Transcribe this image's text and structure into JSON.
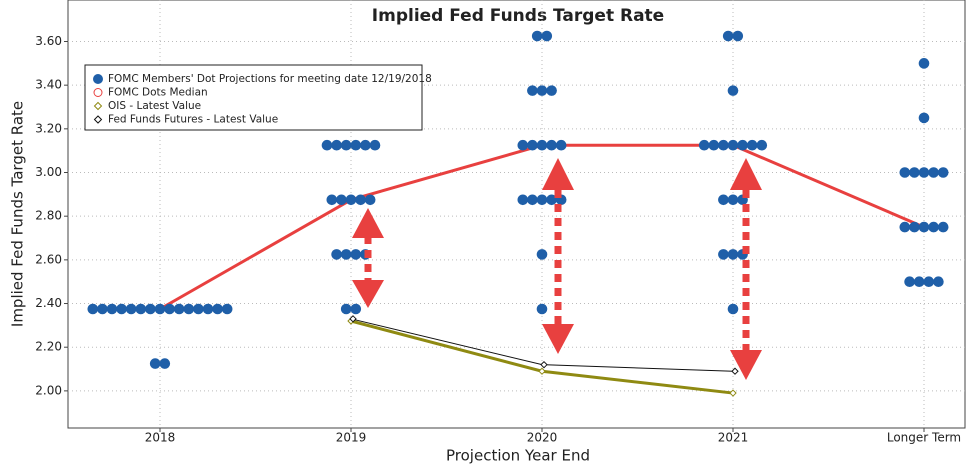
{
  "chart_data": {
    "type": "dot",
    "title": "Implied Fed Funds Target Rate",
    "x_label": "Projection Year End",
    "y_label": "Implied Fed Funds Target Rate",
    "categories": [
      "2018",
      "2019",
      "2020",
      "2021",
      "Longer Term"
    ],
    "ylim": [
      1.83,
      3.79
    ],
    "yticks": [
      {
        "value": 2.0,
        "label": "2.00"
      },
      {
        "value": 2.2,
        "label": "2.20"
      },
      {
        "value": 2.4,
        "label": "2.40"
      },
      {
        "value": 2.6,
        "label": "2.60"
      },
      {
        "value": 2.8,
        "label": "2.80"
      },
      {
        "value": 3.0,
        "label": "3.00"
      },
      {
        "value": 3.2,
        "label": "3.20"
      },
      {
        "value": 3.4,
        "label": "3.40"
      },
      {
        "value": 3.6,
        "label": "3.60"
      }
    ],
    "grid": true,
    "legend": "upper left",
    "series": [
      {
        "name": "FOMC Members' Dot Projections for meeting date 12/19/2018",
        "color": "#1f5fa8",
        "style": "dots",
        "values": [
          [
            2.375,
            2.375,
            2.375,
            2.375,
            2.375,
            2.375,
            2.375,
            2.375,
            2.375,
            2.375,
            2.375,
            2.375,
            2.375,
            2.375,
            2.375,
            2.125,
            2.125
          ],
          [
            3.125,
            3.125,
            3.125,
            3.125,
            3.125,
            3.125,
            2.875,
            2.875,
            2.875,
            2.875,
            2.875,
            2.625,
            2.625,
            2.625,
            2.625,
            2.375,
            2.375
          ],
          [
            3.625,
            3.625,
            3.375,
            3.375,
            3.375,
            3.125,
            3.125,
            3.125,
            3.125,
            3.125,
            2.875,
            2.875,
            2.875,
            2.875,
            2.875,
            2.625,
            2.375
          ],
          [
            3.625,
            3.625,
            3.375,
            3.125,
            3.125,
            3.125,
            3.125,
            3.125,
            3.125,
            3.125,
            2.875,
            2.875,
            2.875,
            2.625,
            2.625,
            2.625,
            2.375
          ],
          [
            3.5,
            3.25,
            3.0,
            3.0,
            3.0,
            3.0,
            3.0,
            2.75,
            2.75,
            2.75,
            2.75,
            2.75,
            2.5,
            2.5,
            2.5,
            2.5
          ]
        ]
      },
      {
        "name": "FOMC Dots Median",
        "color": "#e8403f",
        "style": "median",
        "values": [
          2.375,
          2.875,
          3.125,
          3.125,
          2.75
        ]
      },
      {
        "name": "OIS - Latest Value",
        "color": "#8f8a12",
        "style": "ois",
        "values": [
          null,
          2.32,
          2.09,
          1.99,
          null
        ]
      },
      {
        "name": "Fed Funds Futures - Latest Value",
        "color": "#111111",
        "style": "futures",
        "values": [
          null,
          2.33,
          2.12,
          2.09,
          null
        ]
      }
    ]
  }
}
